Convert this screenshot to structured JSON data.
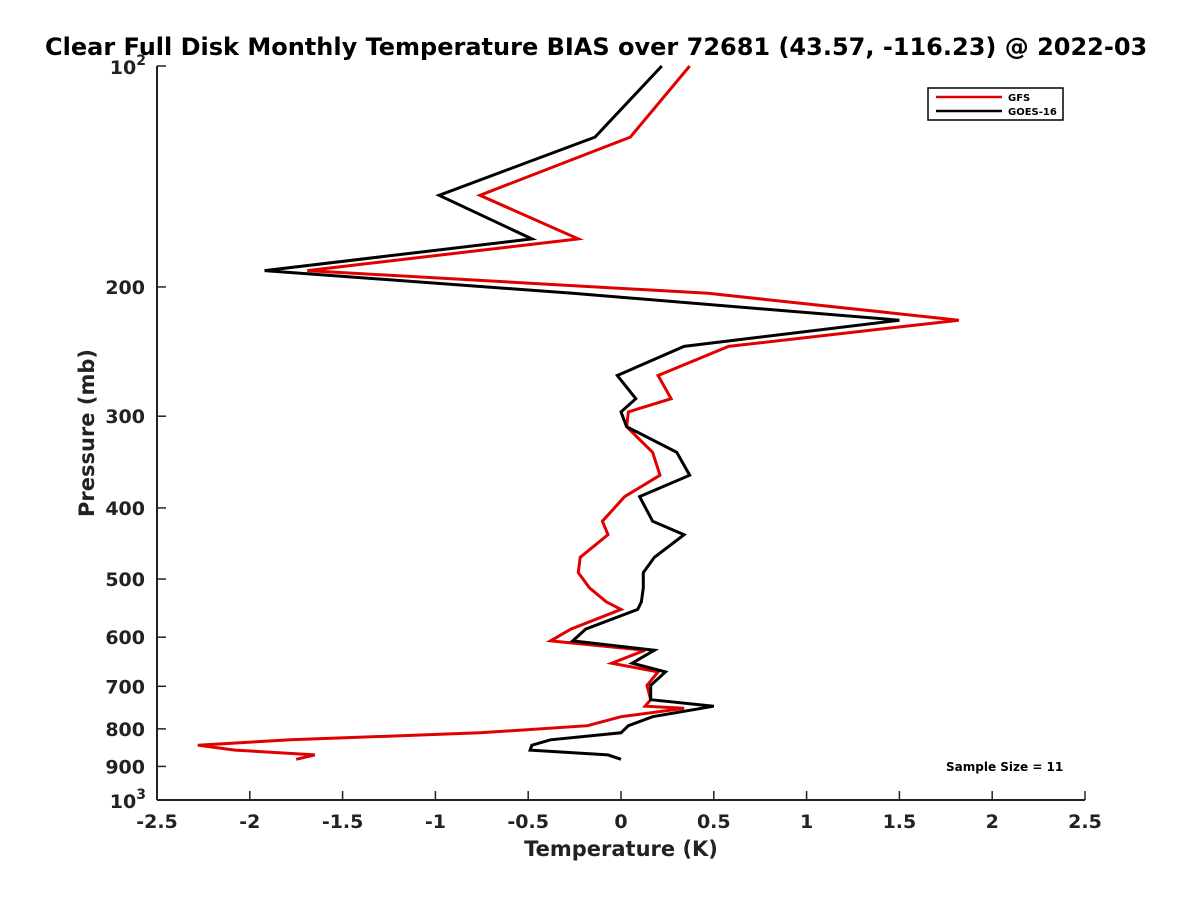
{
  "chart_data": {
    "type": "line",
    "title": "Clear Full Disk Monthly Temperature BIAS over 72681 (43.57, -116.23) @ 2022-03",
    "xlabel": "Temperature (K)",
    "ylabel": "Pressure (mb)",
    "xlim": [
      -2.5,
      2.5
    ],
    "ylim": [
      100,
      1000
    ],
    "yscale": "log",
    "y_reversed": true,
    "x_ticks": [
      "-2.5",
      "-2",
      "-1.5",
      "-1",
      "-0.5",
      "0",
      "0.5",
      "1",
      "1.5",
      "2",
      "2.5"
    ],
    "y_ticks": [
      {
        "value": 100,
        "base": "10",
        "exp": "2"
      },
      {
        "value": 200,
        "label": "200"
      },
      {
        "value": 300,
        "label": "300"
      },
      {
        "value": 400,
        "label": "400"
      },
      {
        "value": 500,
        "label": "500"
      },
      {
        "value": 600,
        "label": "600"
      },
      {
        "value": 700,
        "label": "700"
      },
      {
        "value": 800,
        "label": "800"
      },
      {
        "value": 900,
        "label": "900"
      },
      {
        "value": 1000,
        "base": "10",
        "exp": "3"
      }
    ],
    "legend_position": "top-right",
    "annotation": "Sample Size = 11",
    "series": [
      {
        "name": "GFS",
        "color": "#e00000",
        "points": [
          [
            0.37,
            100
          ],
          [
            0.05,
            125
          ],
          [
            -0.76,
            150
          ],
          [
            -0.23,
            172
          ],
          [
            -1.69,
            190
          ],
          [
            0.47,
            204
          ],
          [
            1.82,
            222
          ],
          [
            0.58,
            241
          ],
          [
            0.2,
            264
          ],
          [
            0.27,
            284
          ],
          [
            0.04,
            296
          ],
          [
            0.03,
            310
          ],
          [
            0.17,
            336
          ],
          [
            0.21,
            361
          ],
          [
            0.02,
            386
          ],
          [
            -0.1,
            417
          ],
          [
            -0.07,
            435
          ],
          [
            -0.22,
            467
          ],
          [
            -0.23,
            490
          ],
          [
            -0.17,
            514
          ],
          [
            -0.08,
            537
          ],
          [
            0.0,
            550
          ],
          [
            -0.27,
            585
          ],
          [
            -0.38,
            607
          ],
          [
            0.13,
            625
          ],
          [
            -0.05,
            651
          ],
          [
            0.2,
            669
          ],
          [
            0.14,
            698
          ],
          [
            0.16,
            730
          ],
          [
            0.13,
            745
          ],
          [
            0.34,
            750
          ],
          [
            0.0,
            770
          ],
          [
            -0.18,
            792
          ],
          [
            -0.76,
            810
          ],
          [
            -1.78,
            828
          ],
          [
            -2.28,
            842
          ],
          [
            -2.08,
            855
          ],
          [
            -1.65,
            868
          ],
          [
            -1.75,
            880
          ]
        ]
      },
      {
        "name": "GOES-16",
        "color": "#000000",
        "points": [
          [
            0.22,
            100
          ],
          [
            -0.14,
            125
          ],
          [
            -0.98,
            150
          ],
          [
            -0.48,
            172
          ],
          [
            -1.92,
            190
          ],
          [
            -0.26,
            204
          ],
          [
            1.5,
            222
          ],
          [
            0.34,
            241
          ],
          [
            -0.02,
            264
          ],
          [
            0.08,
            284
          ],
          [
            0.0,
            296
          ],
          [
            0.03,
            310
          ],
          [
            0.3,
            336
          ],
          [
            0.37,
            361
          ],
          [
            0.1,
            386
          ],
          [
            0.17,
            417
          ],
          [
            0.34,
            435
          ],
          [
            0.18,
            467
          ],
          [
            0.12,
            490
          ],
          [
            0.12,
            514
          ],
          [
            0.11,
            537
          ],
          [
            0.09,
            550
          ],
          [
            -0.19,
            585
          ],
          [
            -0.26,
            607
          ],
          [
            0.18,
            625
          ],
          [
            0.06,
            651
          ],
          [
            0.24,
            669
          ],
          [
            0.16,
            698
          ],
          [
            0.16,
            730
          ],
          [
            0.5,
            745
          ],
          [
            0.17,
            770
          ],
          [
            0.04,
            792
          ],
          [
            0.0,
            810
          ],
          [
            -0.38,
            828
          ],
          [
            -0.48,
            842
          ],
          [
            -0.49,
            855
          ],
          [
            -0.07,
            868
          ],
          [
            0.0,
            880
          ]
        ]
      }
    ]
  }
}
